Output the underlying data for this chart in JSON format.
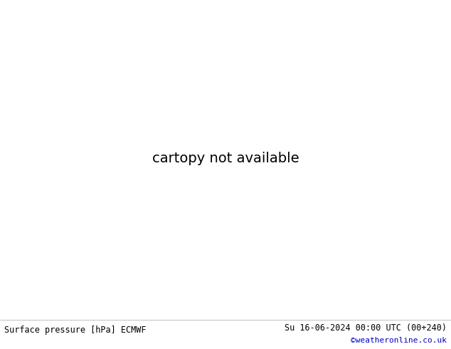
{
  "title_left": "Surface pressure [hPa] ECMWF",
  "title_right": "Su 16-06-2024 00:00 UTC (00+240)",
  "copyright": "©weatheronline.co.uk",
  "bg_color": "#ffffff",
  "ocean_color": "#d0d0d0",
  "land_color": "#c8f0a8",
  "glacier_color": "#aaaaaa",
  "contour_black_color": "#000000",
  "contour_red_color": "#cc0000",
  "contour_blue_color": "#0000cc",
  "label_black_color": "#000000",
  "label_red_color": "#cc0000",
  "label_blue_color": "#0000cc",
  "footer_text_color": "#000000",
  "copyright_color": "#0000cc",
  "pressure_base": 1013,
  "pressure_interval": 4,
  "pressure_min": 956,
  "pressure_max": 1036,
  "figsize": [
    6.34,
    4.9
  ],
  "dpi": 100
}
